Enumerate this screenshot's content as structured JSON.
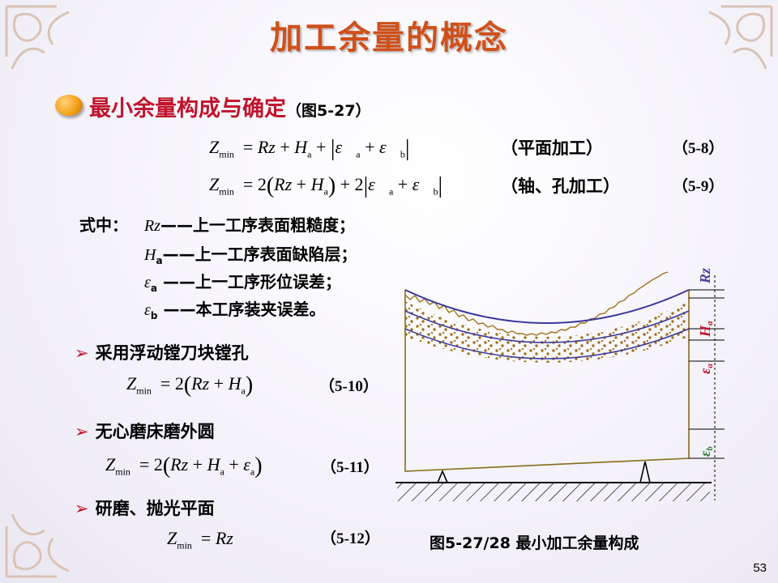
{
  "slide": {
    "title": "加工余量的概念",
    "heading": "最小余量构成与确定",
    "heading_ref": "（图5-27）",
    "equations": [
      {
        "lhs": "Z",
        "lhs_sub": "min",
        "rhs_text": "= Rz + H",
        "note": "（平面加工）",
        "number": "（5-8）"
      },
      {
        "lhs": "Z",
        "lhs_sub": "min",
        "rhs_text": "= 2(Rz + H",
        "note": "（轴、孔加工）",
        "number": "（5-9）"
      }
    ],
    "definitions": {
      "prefix": "式中：",
      "items": [
        {
          "symbol": "Rz",
          "text": "——上一工序表面粗糙度；"
        },
        {
          "symbol": "H",
          "sub": "a",
          "text": "——上一工序表面缺陷层；"
        },
        {
          "symbol": "ε",
          "sub": "a",
          "text": "——上一工序形位误差；"
        },
        {
          "symbol": "ε",
          "sub": "b",
          "text": "——本工序装夹误差。"
        }
      ]
    },
    "cases": [
      {
        "label": "采用浮动镗刀块镗孔",
        "number": "（5-10）"
      },
      {
        "label": "无心磨床磨外圆",
        "number": "（5-11）"
      },
      {
        "label": "研磨、抛光平面",
        "number": "（5-12）"
      }
    ],
    "figure": {
      "caption": "图5-27/28   最小加工余量构成",
      "labels": {
        "rz": "Rz",
        "ha": "H",
        "ha_sub": "a",
        "ea": "ε",
        "ea_sub": "a",
        "eb": "ε",
        "eb_sub": "b"
      }
    },
    "page_number": "53",
    "colors": {
      "title": "#d0501a",
      "heading": "#c0142c",
      "arrow": "#c0142c",
      "figure_label": "#4a3fa0",
      "figure_label_red": "#c0142c"
    }
  }
}
